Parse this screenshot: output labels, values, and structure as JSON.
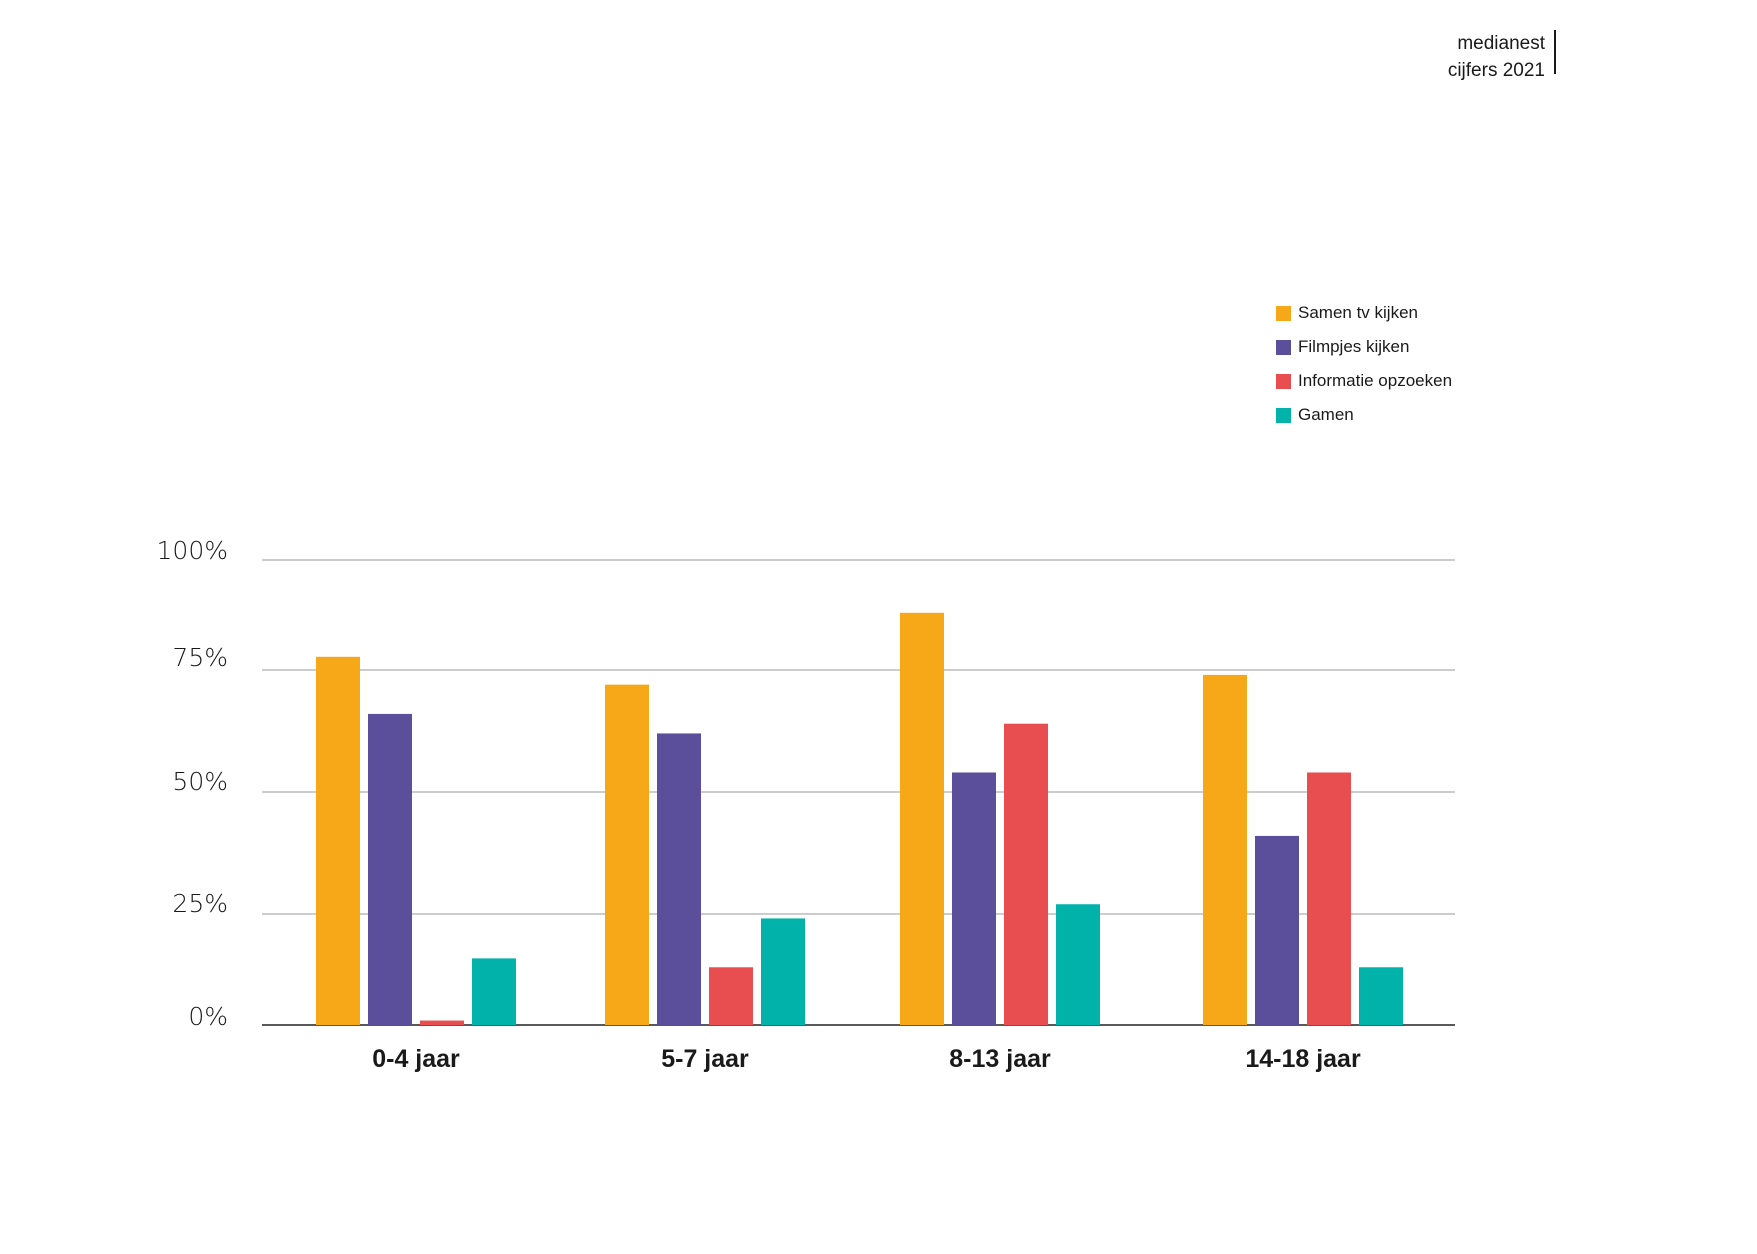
{
  "brand": {
    "line1": "medianest",
    "line2": "cijfers 2021"
  },
  "chart_data": {
    "type": "bar",
    "title": "",
    "xlabel": "",
    "ylabel": "",
    "categories": [
      "0-4 jaar",
      "5-7 jaar",
      "8-13 jaar",
      "14-18 jaar"
    ],
    "series": [
      {
        "name": "Samen tv kijken",
        "color": "#F7A818",
        "values": [
          78,
          72,
          88,
          74
        ]
      },
      {
        "name": "Filmpjes kijken",
        "color": "#5B4F9C",
        "values": [
          66,
          62,
          54,
          41
        ]
      },
      {
        "name": "Informatie opzoeken",
        "color": "#E84E4F",
        "values": [
          1,
          13,
          64,
          54
        ]
      },
      {
        "name": "Gamen",
        "color": "#00B2A9",
        "values": [
          15,
          24,
          27,
          13
        ]
      }
    ],
    "ylim": [
      0,
      100
    ],
    "yticks": [
      "0%",
      "25%",
      "50%",
      "75%",
      "100%"
    ],
    "grid": true,
    "legend_position": "top-right"
  }
}
